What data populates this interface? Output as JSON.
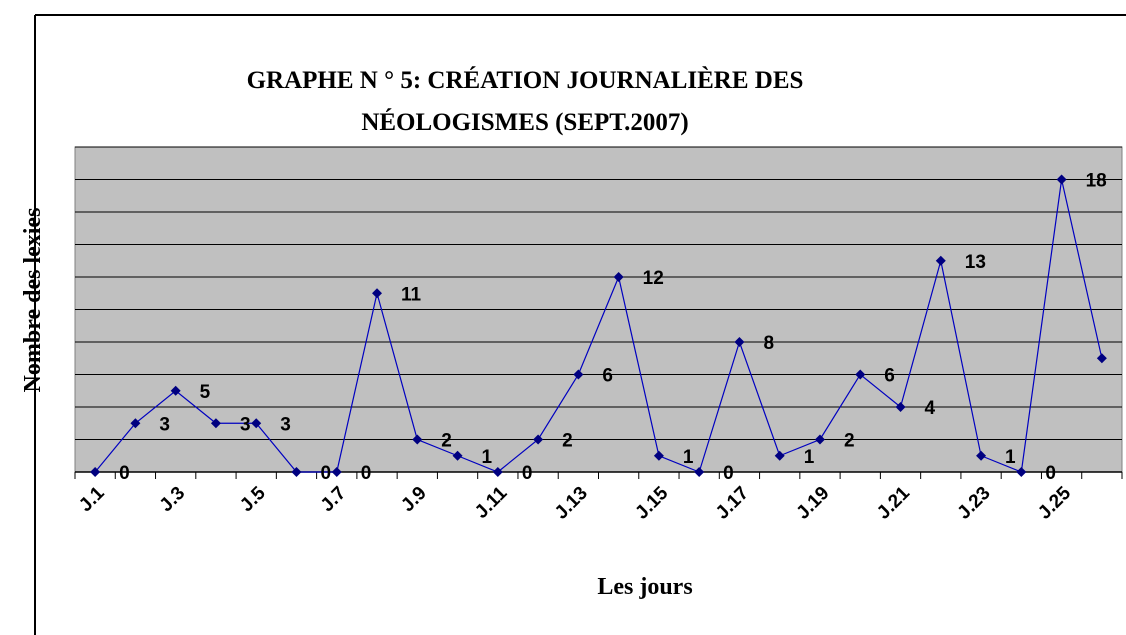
{
  "chart_data": {
    "type": "line",
    "title": [
      "GRAPHE N ° 5:  CRÉATION  JOURNALIÈRE DES",
      "NÉOLOGISMES (SEPT.2007)"
    ],
    "x_label": "Les jours",
    "y_label": "Nombre des lexies",
    "categories": [
      "J.1",
      null,
      "J.3",
      null,
      "J.5",
      null,
      "J.7",
      null,
      "J.9",
      null,
      "J.11",
      null,
      "J.13",
      null,
      "J.15",
      null,
      "J.17",
      null,
      "J.19",
      null,
      "J.21",
      null,
      "J.23",
      null,
      "J.25",
      null
    ],
    "series": [
      {
        "name": "Nombre des lexies",
        "color": "#000080",
        "values": [
          0,
          3,
          5,
          3,
          3,
          0,
          0,
          11,
          2,
          1,
          0,
          2,
          6,
          12,
          1,
          0,
          8,
          1,
          2,
          6,
          4,
          13,
          1,
          0,
          18,
          7
        ]
      }
    ],
    "ylim": [
      0,
      20
    ],
    "yticks": [
      0,
      2,
      4,
      6,
      8,
      10,
      12,
      14,
      16,
      18,
      20
    ],
    "grid": true,
    "background": "#c0c0c0"
  }
}
